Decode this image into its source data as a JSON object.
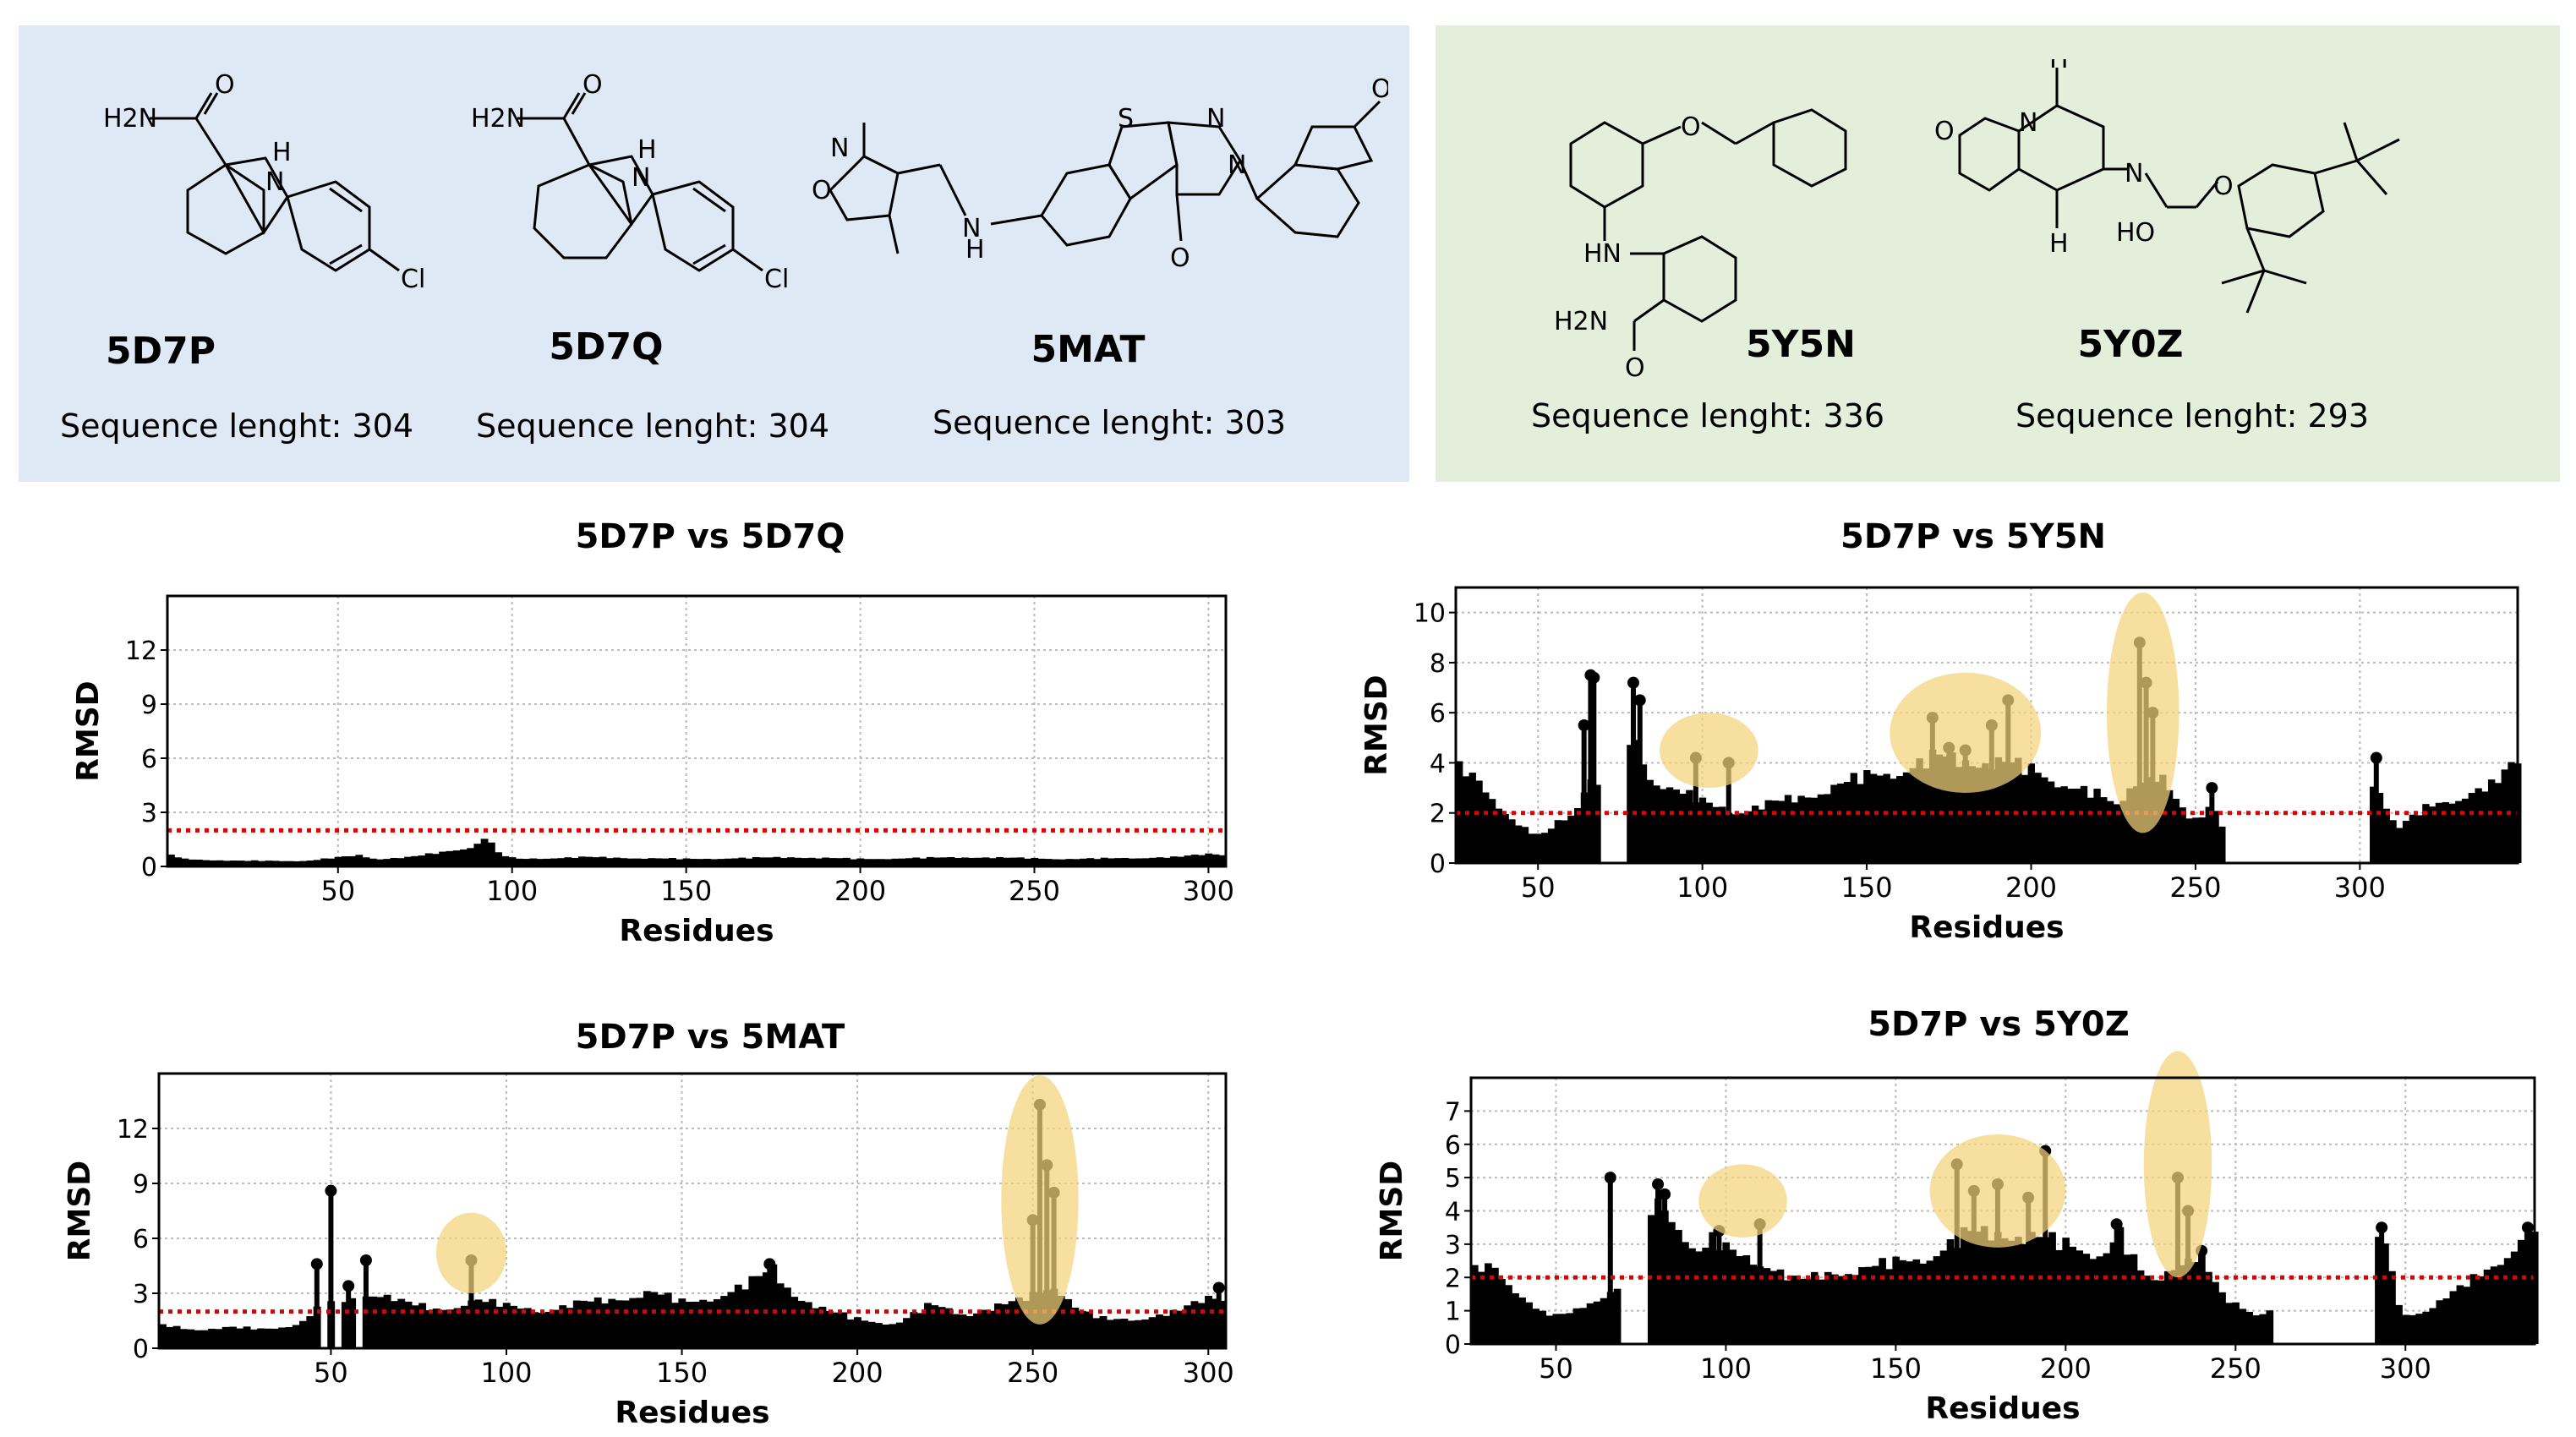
{
  "molecules": {
    "left": [
      {
        "code": "5D7P",
        "sequence": "Sequence lenght: 304"
      },
      {
        "code": "5D7Q",
        "sequence": "Sequence lenght: 304"
      },
      {
        "code": "5MAT",
        "sequence": "Sequence lenght: 303"
      }
    ],
    "right": [
      {
        "code": "5Y5N",
        "sequence": "Sequence lenght: 336"
      },
      {
        "code": "5Y0Z",
        "sequence": "Sequence lenght: 293"
      }
    ]
  },
  "atom_labels": {
    "h2n": "H2N",
    "o": "O",
    "h": "H",
    "n": "N",
    "cl": "Cl",
    "s": "S",
    "hn": "HN",
    "ho": "HO"
  },
  "colors": {
    "panel_left": "#dfe9f6",
    "panel_right": "#e3eedb",
    "bars": "#000000",
    "threshold": "#e00000",
    "highlight": "#f3d27a",
    "grid": "#bbbbbb"
  },
  "chart_data": [
    {
      "id": "c1",
      "type": "bar",
      "title": "5D7P vs 5D7Q",
      "xlabel": "Residues",
      "ylabel": "RMSD",
      "xlim": [
        1,
        305
      ],
      "ylim": [
        0,
        15
      ],
      "xticks": [
        50,
        100,
        150,
        200,
        250,
        300
      ],
      "yticks": [
        0,
        3,
        6,
        9,
        12
      ],
      "threshold": 2,
      "gaps": [],
      "profile": [
        [
          1,
          0.6
        ],
        [
          5,
          0.4
        ],
        [
          20,
          0.3
        ],
        [
          40,
          0.3
        ],
        [
          55,
          0.6
        ],
        [
          60,
          0.4
        ],
        [
          70,
          0.5
        ],
        [
          80,
          0.8
        ],
        [
          88,
          1.1
        ],
        [
          92,
          1.6
        ],
        [
          95,
          0.7
        ],
        [
          100,
          0.4
        ],
        [
          120,
          0.5
        ],
        [
          150,
          0.4
        ],
        [
          180,
          0.5
        ],
        [
          200,
          0.4
        ],
        [
          230,
          0.5
        ],
        [
          260,
          0.4
        ],
        [
          290,
          0.5
        ],
        [
          300,
          0.7
        ],
        [
          305,
          0.6
        ]
      ],
      "spikes": [],
      "highlights": []
    },
    {
      "id": "c2",
      "type": "bar",
      "title": "5D7P vs 5Y5N",
      "xlabel": "Residues",
      "ylabel": "RMSD",
      "xlim": [
        25,
        348
      ],
      "ylim": [
        0,
        11
      ],
      "xticks": [
        50,
        100,
        150,
        200,
        250,
        300
      ],
      "yticks": [
        0,
        2,
        4,
        6,
        8,
        10
      ],
      "threshold": 2,
      "gaps": [
        [
          68,
          78
        ],
        [
          258,
          304
        ]
      ],
      "profile": [
        [
          25,
          3.6
        ],
        [
          30,
          3.3
        ],
        [
          35,
          2.6
        ],
        [
          40,
          1.8
        ],
        [
          45,
          1.3
        ],
        [
          50,
          1.0
        ],
        [
          55,
          1.6
        ],
        [
          60,
          2.0
        ],
        [
          64,
          3.2
        ],
        [
          68,
          3.2
        ],
        [
          78,
          5.0
        ],
        [
          82,
          3.5
        ],
        [
          88,
          3.0
        ],
        [
          95,
          2.6
        ],
        [
          100,
          2.3
        ],
        [
          110,
          2.0
        ],
        [
          120,
          2.3
        ],
        [
          130,
          2.6
        ],
        [
          140,
          3.0
        ],
        [
          150,
          3.4
        ],
        [
          160,
          3.6
        ],
        [
          170,
          4.1
        ],
        [
          180,
          4.0
        ],
        [
          190,
          3.9
        ],
        [
          200,
          3.6
        ],
        [
          210,
          3.0
        ],
        [
          220,
          2.6
        ],
        [
          225,
          2.2
        ],
        [
          230,
          3.2
        ],
        [
          238,
          3.4
        ],
        [
          245,
          2.0
        ],
        [
          250,
          1.6
        ],
        [
          254,
          2.5
        ],
        [
          258,
          1.2
        ],
        [
          304,
          3.2
        ],
        [
          310,
          1.3
        ],
        [
          320,
          2.2
        ],
        [
          330,
          2.6
        ],
        [
          340,
          3.0
        ],
        [
          348,
          4.2
        ]
      ],
      "spikes": [
        [
          64,
          5.5
        ],
        [
          66,
          7.5
        ],
        [
          67,
          7.4
        ],
        [
          79,
          7.2
        ],
        [
          81,
          6.5
        ],
        [
          98,
          4.2
        ],
        [
          108,
          4.0
        ],
        [
          170,
          5.8
        ],
        [
          175,
          4.6
        ],
        [
          180,
          4.5
        ],
        [
          188,
          5.5
        ],
        [
          193,
          6.5
        ],
        [
          233,
          8.8
        ],
        [
          235,
          7.2
        ],
        [
          237,
          6.0
        ],
        [
          255,
          3.0
        ],
        [
          305,
          4.2
        ]
      ],
      "highlights": [
        {
          "x": 102,
          "y": 4.5,
          "rx": 15,
          "ry": 1.5
        },
        {
          "x": 180,
          "y": 5.2,
          "rx": 23,
          "ry": 2.4
        },
        {
          "x": 234,
          "y": 6.0,
          "rx": 11,
          "ry": 4.8
        }
      ]
    },
    {
      "id": "c3",
      "type": "bar",
      "title": "5D7P vs 5MAT",
      "xlabel": "Residues",
      "ylabel": "RMSD",
      "xlim": [
        1,
        305
      ],
      "ylim": [
        0,
        15
      ],
      "xticks": [
        50,
        100,
        150,
        200,
        250,
        300
      ],
      "yticks": [
        0,
        3,
        6,
        9,
        12
      ],
      "threshold": 2,
      "gaps": [
        [
          47,
          49
        ],
        [
          51,
          53
        ],
        [
          57,
          60
        ]
      ],
      "profile": [
        [
          1,
          1.2
        ],
        [
          10,
          1.0
        ],
        [
          20,
          1.1
        ],
        [
          30,
          1.0
        ],
        [
          40,
          1.3
        ],
        [
          46,
          2.2
        ],
        [
          53,
          2.5
        ],
        [
          57,
          2.6
        ],
        [
          60,
          3.0
        ],
        [
          65,
          2.8
        ],
        [
          70,
          2.4
        ],
        [
          80,
          2.0
        ],
        [
          90,
          2.6
        ],
        [
          100,
          2.2
        ],
        [
          110,
          2.0
        ],
        [
          120,
          2.4
        ],
        [
          130,
          2.6
        ],
        [
          140,
          3.0
        ],
        [
          150,
          2.4
        ],
        [
          160,
          2.8
        ],
        [
          170,
          3.6
        ],
        [
          175,
          4.2
        ],
        [
          180,
          3.0
        ],
        [
          190,
          2.0
        ],
        [
          200,
          1.5
        ],
        [
          210,
          1.3
        ],
        [
          220,
          2.3
        ],
        [
          230,
          1.8
        ],
        [
          245,
          2.5
        ],
        [
          255,
          3.4
        ],
        [
          262,
          2.0
        ],
        [
          270,
          1.5
        ],
        [
          280,
          1.6
        ],
        [
          290,
          1.9
        ],
        [
          300,
          2.8
        ],
        [
          305,
          2.6
        ]
      ],
      "spikes": [
        [
          46,
          4.6
        ],
        [
          50,
          8.6
        ],
        [
          55,
          3.4
        ],
        [
          60,
          4.8
        ],
        [
          90,
          4.8
        ],
        [
          175,
          4.6
        ],
        [
          250,
          7.0
        ],
        [
          252,
          13.3
        ],
        [
          254,
          10.0
        ],
        [
          256,
          8.5
        ],
        [
          303,
          3.3
        ]
      ],
      "highlights": [
        {
          "x": 90,
          "y": 5.2,
          "rx": 10,
          "ry": 2.2
        },
        {
          "x": 252,
          "y": 8.1,
          "rx": 11,
          "ry": 6.8
        }
      ]
    },
    {
      "id": "c4",
      "type": "bar",
      "title": "5D7P vs 5Y0Z",
      "xlabel": "Residues",
      "ylabel": "RMSD",
      "xlim": [
        25,
        338
      ],
      "ylim": [
        0,
        8
      ],
      "xticks": [
        50,
        100,
        150,
        200,
        250,
        300
      ],
      "yticks": [
        0,
        1,
        2,
        3,
        4,
        5,
        6,
        7
      ],
      "threshold": 2,
      "gaps": [
        [
          68,
          78
        ],
        [
          260,
          292
        ]
      ],
      "profile": [
        [
          25,
          2.1
        ],
        [
          30,
          2.3
        ],
        [
          35,
          1.8
        ],
        [
          40,
          1.3
        ],
        [
          45,
          0.9
        ],
        [
          50,
          0.8
        ],
        [
          55,
          1.0
        ],
        [
          60,
          1.3
        ],
        [
          65,
          1.5
        ],
        [
          68,
          1.8
        ],
        [
          78,
          4.2
        ],
        [
          85,
          3.6
        ],
        [
          90,
          2.6
        ],
        [
          95,
          3.0
        ],
        [
          100,
          2.7
        ],
        [
          110,
          2.4
        ],
        [
          120,
          1.8
        ],
        [
          130,
          2.1
        ],
        [
          140,
          2.2
        ],
        [
          150,
          2.4
        ],
        [
          160,
          2.6
        ],
        [
          170,
          3.2
        ],
        [
          180,
          3.3
        ],
        [
          190,
          3.1
        ],
        [
          200,
          2.9
        ],
        [
          210,
          2.6
        ],
        [
          215,
          3.2
        ],
        [
          220,
          2.2
        ],
        [
          225,
          1.8
        ],
        [
          230,
          2.3
        ],
        [
          238,
          2.6
        ],
        [
          245,
          1.4
        ],
        [
          250,
          1.1
        ],
        [
          255,
          0.9
        ],
        [
          260,
          1.0
        ],
        [
          292,
          3.2
        ],
        [
          298,
          0.8
        ],
        [
          305,
          1.0
        ],
        [
          315,
          1.6
        ],
        [
          325,
          2.3
        ],
        [
          338,
          3.5
        ]
      ],
      "spikes": [
        [
          66,
          5.0
        ],
        [
          80,
          4.8
        ],
        [
          82,
          4.5
        ],
        [
          98,
          3.4
        ],
        [
          110,
          3.6
        ],
        [
          168,
          5.4
        ],
        [
          173,
          4.6
        ],
        [
          180,
          4.8
        ],
        [
          189,
          4.4
        ],
        [
          194,
          5.8
        ],
        [
          215,
          3.6
        ],
        [
          233,
          5.0
        ],
        [
          236,
          4.0
        ],
        [
          240,
          2.8
        ],
        [
          293,
          3.5
        ],
        [
          336,
          3.5
        ]
      ],
      "highlights": [
        {
          "x": 105,
          "y": 4.3,
          "rx": 13,
          "ry": 1.1
        },
        {
          "x": 180,
          "y": 4.6,
          "rx": 20,
          "ry": 1.7
        },
        {
          "x": 233,
          "y": 5.4,
          "rx": 10,
          "ry": 3.4
        }
      ]
    }
  ]
}
